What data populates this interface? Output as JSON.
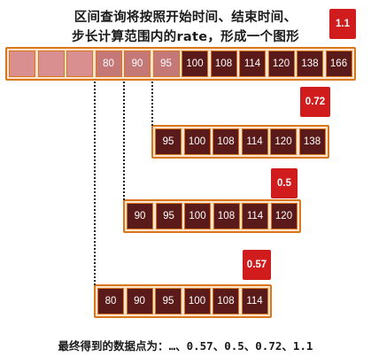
{
  "title": {
    "line1": "区间查询将按照开始时间、结束时间、",
    "line2": "步长计算范围内的rate，形成一个图形"
  },
  "rows": [
    {
      "name": "row-1",
      "cells": [
        {
          "value": "",
          "style": "empty"
        },
        {
          "value": "",
          "style": "empty"
        },
        {
          "value": "",
          "style": "empty"
        },
        {
          "value": "80",
          "style": "faded"
        },
        {
          "value": "90",
          "style": "faded"
        },
        {
          "value": "95",
          "style": "faded"
        },
        {
          "value": "100",
          "style": "dark"
        },
        {
          "value": "108",
          "style": "dark"
        },
        {
          "value": "114",
          "style": "dark"
        },
        {
          "value": "120",
          "style": "dark"
        },
        {
          "value": "138",
          "style": "dark"
        },
        {
          "value": "166",
          "style": "dark"
        }
      ],
      "badge": "1.1"
    },
    {
      "name": "row-2",
      "cells": [
        {
          "value": "95",
          "style": "dark"
        },
        {
          "value": "100",
          "style": "dark"
        },
        {
          "value": "108",
          "style": "dark"
        },
        {
          "value": "114",
          "style": "dark"
        },
        {
          "value": "120",
          "style": "dark"
        },
        {
          "value": "138",
          "style": "dark"
        }
      ],
      "badge": "0.72"
    },
    {
      "name": "row-3",
      "cells": [
        {
          "value": "90",
          "style": "dark"
        },
        {
          "value": "95",
          "style": "dark"
        },
        {
          "value": "100",
          "style": "dark"
        },
        {
          "value": "108",
          "style": "dark"
        },
        {
          "value": "114",
          "style": "dark"
        },
        {
          "value": "120",
          "style": "dark"
        }
      ],
      "badge": "0.5"
    },
    {
      "name": "row-4",
      "cells": [
        {
          "value": "80",
          "style": "dark"
        },
        {
          "value": "90",
          "style": "dark"
        },
        {
          "value": "95",
          "style": "dark"
        },
        {
          "value": "100",
          "style": "dark"
        },
        {
          "value": "108",
          "style": "dark"
        },
        {
          "value": "114",
          "style": "dark"
        }
      ],
      "badge": "0.57"
    }
  ],
  "footer": {
    "label": "最终得到的数据点为：",
    "values": "…、0.57、0.5、0.72、1.1"
  },
  "colors": {
    "row_background": "#fbe3d0",
    "border": "#d9771c",
    "cell_dark": "#5a1a1a",
    "cell_faded": "#c47878",
    "cell_empty": "#d98f8f",
    "badge": "#d01c1c"
  }
}
